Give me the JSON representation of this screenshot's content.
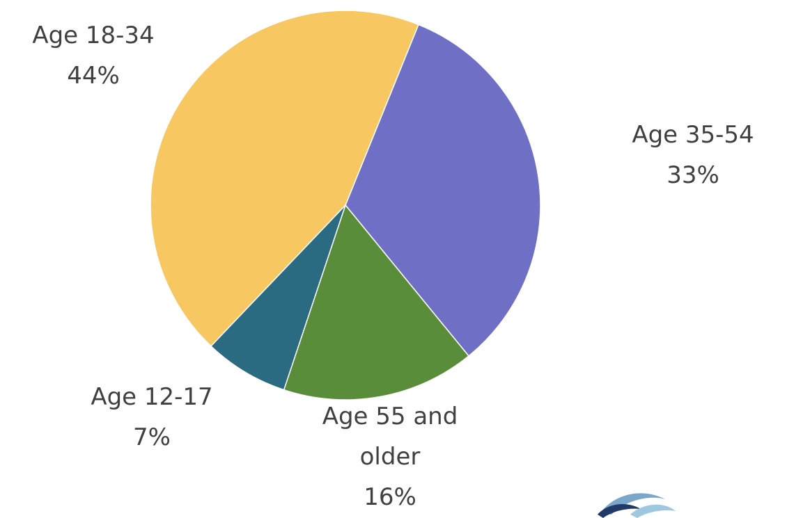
{
  "chart_data": {
    "type": "pie",
    "slices": [
      {
        "label_lines": [
          "Age 35-54"
        ],
        "value": 33,
        "value_text": "33%",
        "color": "#6f6fc5"
      },
      {
        "label_lines": [
          "Age 55 and",
          "older"
        ],
        "value": 16,
        "value_text": "16%",
        "color": "#5a8d3a"
      },
      {
        "label_lines": [
          "Age 12-17"
        ],
        "value": 7,
        "value_text": "7%",
        "color": "#2b6b82"
      },
      {
        "label_lines": [
          "Age 18-34"
        ],
        "value": 44,
        "value_text": "44%",
        "color": "#f7c762"
      }
    ],
    "start": "top-right, clockwise",
    "legend": "none"
  },
  "logo": {
    "name": "wave-logo-icon",
    "colors": [
      "#7aa7c9",
      "#1f3a66",
      "#9ec7e0"
    ]
  }
}
